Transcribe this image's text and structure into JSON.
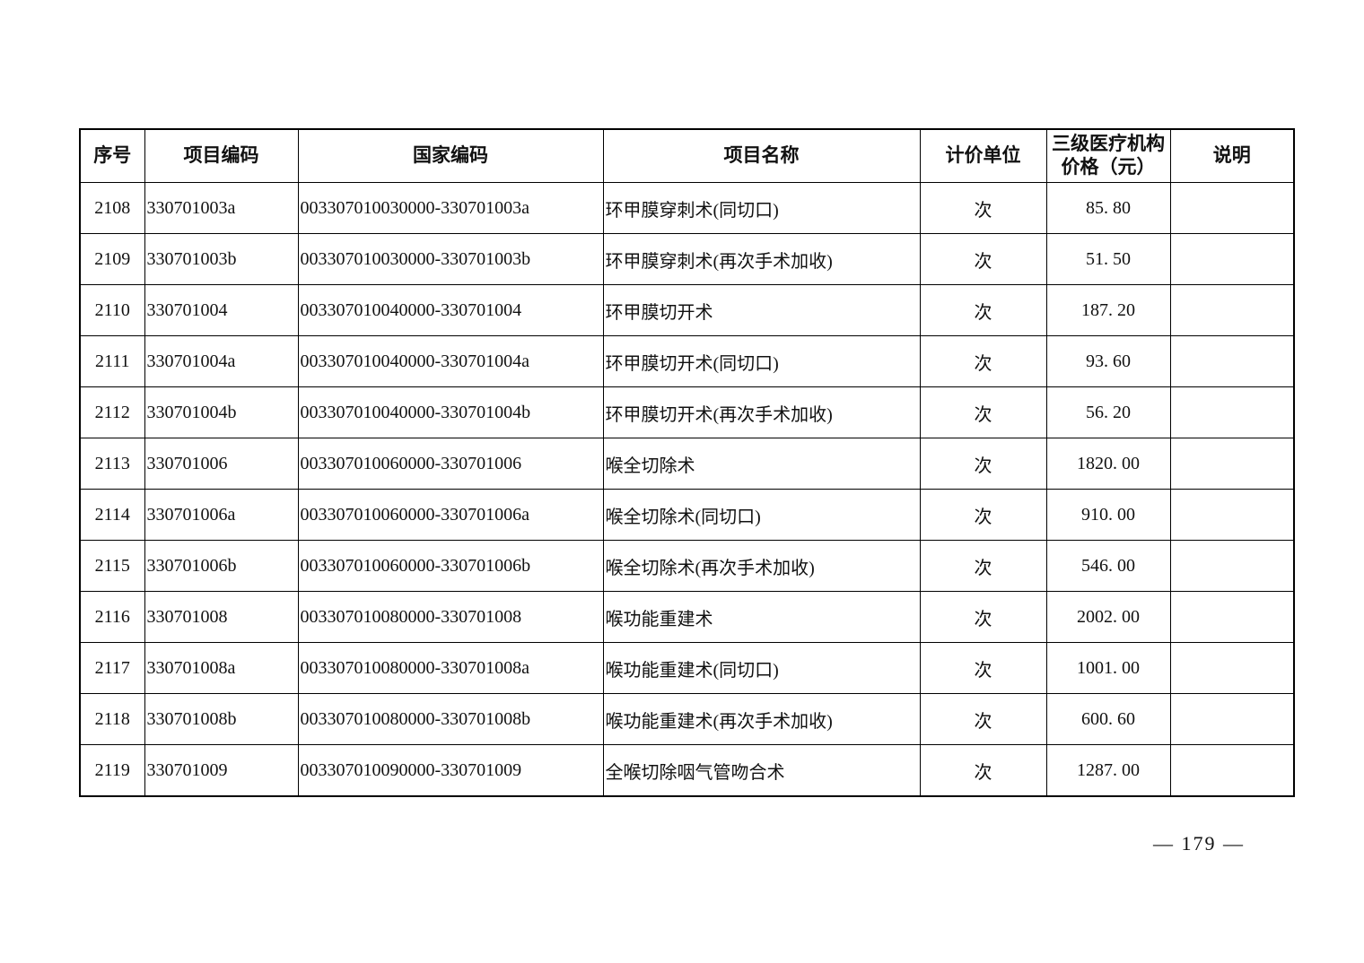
{
  "table": {
    "headers": {
      "seq": "序号",
      "item_code": "项目编码",
      "national_code": "国家编码",
      "name": "项目名称",
      "unit": "计价单位",
      "price": "三级医疗机构价格（元）",
      "note": "说明"
    },
    "rows": [
      {
        "seq": "2108",
        "item_code": "330701003a",
        "national_code": "003307010030000-330701003a",
        "name": "环甲膜穿刺术(同切口)",
        "unit": "次",
        "price": "85. 80",
        "note": ""
      },
      {
        "seq": "2109",
        "item_code": "330701003b",
        "national_code": "003307010030000-330701003b",
        "name": "环甲膜穿刺术(再次手术加收)",
        "unit": "次",
        "price": "51. 50",
        "note": ""
      },
      {
        "seq": "2110",
        "item_code": "330701004",
        "national_code": "003307010040000-330701004",
        "name": "环甲膜切开术",
        "unit": "次",
        "price": "187. 20",
        "note": ""
      },
      {
        "seq": "2111",
        "item_code": "330701004a",
        "national_code": "003307010040000-330701004a",
        "name": "环甲膜切开术(同切口)",
        "unit": "次",
        "price": "93. 60",
        "note": ""
      },
      {
        "seq": "2112",
        "item_code": "330701004b",
        "national_code": "003307010040000-330701004b",
        "name": "环甲膜切开术(再次手术加收)",
        "unit": "次",
        "price": "56. 20",
        "note": ""
      },
      {
        "seq": "2113",
        "item_code": "330701006",
        "national_code": "003307010060000-330701006",
        "name": "喉全切除术",
        "unit": "次",
        "price": "1820. 00",
        "note": ""
      },
      {
        "seq": "2114",
        "item_code": "330701006a",
        "national_code": "003307010060000-330701006a",
        "name": "喉全切除术(同切口)",
        "unit": "次",
        "price": "910. 00",
        "note": ""
      },
      {
        "seq": "2115",
        "item_code": "330701006b",
        "national_code": "003307010060000-330701006b",
        "name": "喉全切除术(再次手术加收)",
        "unit": "次",
        "price": "546. 00",
        "note": ""
      },
      {
        "seq": "2116",
        "item_code": "330701008",
        "national_code": "003307010080000-330701008",
        "name": "喉功能重建术",
        "unit": "次",
        "price": "2002. 00",
        "note": ""
      },
      {
        "seq": "2117",
        "item_code": "330701008a",
        "national_code": "003307010080000-330701008a",
        "name": "喉功能重建术(同切口)",
        "unit": "次",
        "price": "1001. 00",
        "note": ""
      },
      {
        "seq": "2118",
        "item_code": "330701008b",
        "national_code": "003307010080000-330701008b",
        "name": "喉功能重建术(再次手术加收)",
        "unit": "次",
        "price": "600. 60",
        "note": ""
      },
      {
        "seq": "2119",
        "item_code": "330701009",
        "national_code": "003307010090000-330701009",
        "name": "全喉切除咽气管吻合术",
        "unit": "次",
        "price": "1287. 00",
        "note": ""
      }
    ]
  },
  "footer": {
    "page_number": "— 179 —"
  }
}
